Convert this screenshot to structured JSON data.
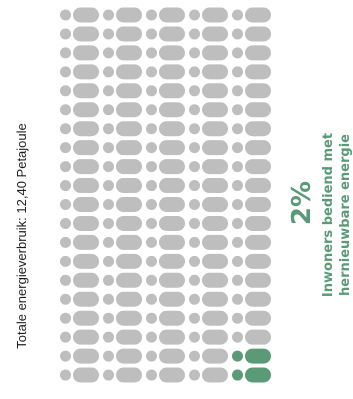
{
  "chart_data": {
    "type": "pictogram",
    "total_units": 100,
    "highlighted_units": 2,
    "percentage_label": "2%",
    "percentage_value": 2,
    "caption_line1": "Inwoners bediend met",
    "caption_line2": "hernieuwbare energie",
    "left_label": "Totale energieverbruik: 12,40 Petajoule",
    "grid": {
      "columns": 5,
      "rows": 20
    }
  },
  "colors": {
    "base": "#bebebe",
    "highlight": "#5a9a76",
    "text_label": "#1f1f1f",
    "accent": "#5a9a76"
  },
  "icons": {
    "unit": "pill-icon"
  }
}
